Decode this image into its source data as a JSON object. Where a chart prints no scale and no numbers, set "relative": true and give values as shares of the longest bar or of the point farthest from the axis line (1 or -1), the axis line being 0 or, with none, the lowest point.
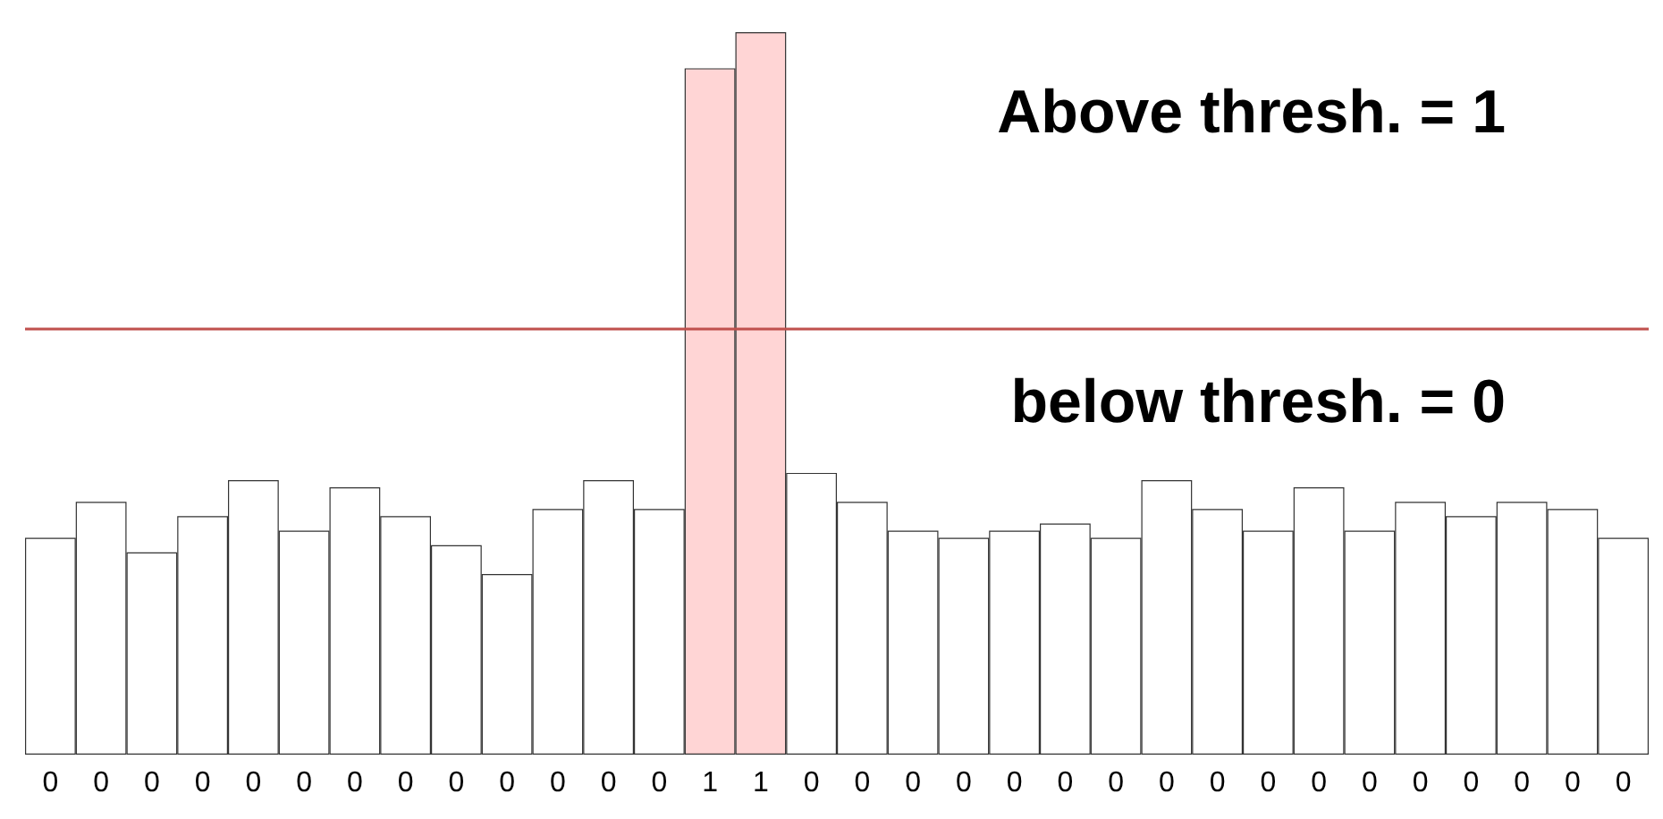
{
  "chart_data": {
    "type": "bar",
    "relative": true,
    "categories": [
      "0",
      "0",
      "0",
      "0",
      "0",
      "0",
      "0",
      "0",
      "0",
      "0",
      "0",
      "0",
      "0",
      "1",
      "1",
      "0",
      "0",
      "0",
      "0",
      "0",
      "0",
      "0",
      "0",
      "0",
      "0",
      "0",
      "0",
      "0",
      "0",
      "0",
      "0",
      "0"
    ],
    "values": [
      0.3,
      0.35,
      0.28,
      0.33,
      0.38,
      0.31,
      0.37,
      0.33,
      0.29,
      0.25,
      0.34,
      0.38,
      0.34,
      0.95,
      1,
      0.39,
      0.35,
      0.31,
      0.3,
      0.31,
      0.32,
      0.3,
      0.38,
      0.34,
      0.31,
      0.37,
      0.31,
      0.35,
      0.33,
      0.35,
      0.34,
      0.3
    ],
    "colors": [
      "#ffffff",
      "#ffffff",
      "#ffffff",
      "#ffffff",
      "#ffffff",
      "#ffffff",
      "#ffffff",
      "#ffffff",
      "#ffffff",
      "#ffffff",
      "#ffffff",
      "#ffffff",
      "#ffffff",
      "#ffd5d5",
      "#ffd5d5",
      "#ffffff",
      "#ffffff",
      "#ffffff",
      "#ffffff",
      "#ffffff",
      "#ffffff",
      "#ffffff",
      "#ffffff",
      "#ffffff",
      "#ffffff",
      "#ffffff",
      "#ffffff",
      "#ffffff",
      "#ffffff",
      "#ffffff",
      "#ffffff",
      "#ffffff"
    ],
    "ref_lines": [
      {
        "axis": "y",
        "value": 0.59,
        "color": "#c0504d"
      }
    ],
    "annotations": [
      "Above thresh. = 1",
      "below thresh. = 0"
    ],
    "grid": false
  }
}
